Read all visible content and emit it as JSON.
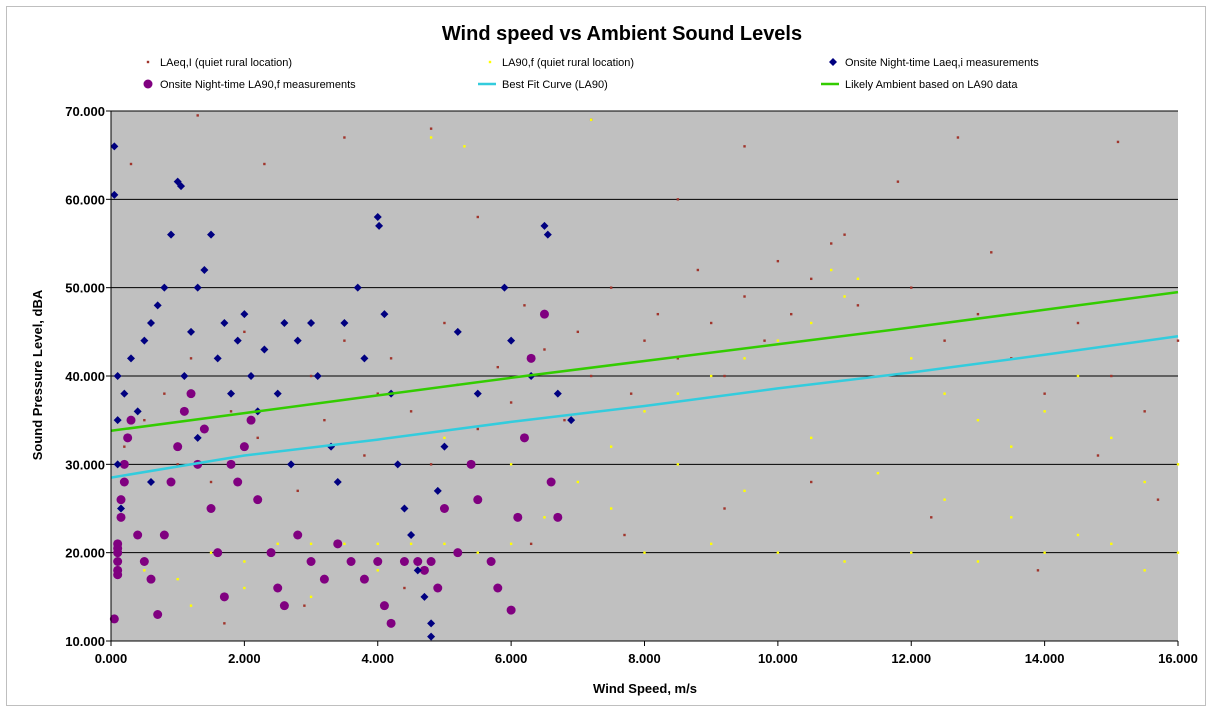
{
  "chart_data": {
    "type": "scatter",
    "title": "Wind speed vs Ambient Sound Levels",
    "xlabel": "Wind Speed, m/s",
    "ylabel": "Sound Pressure Level, dBA",
    "xlim": [
      0,
      16
    ],
    "ylim": [
      10,
      70
    ],
    "x_ticks": [
      "0.000",
      "2.000",
      "4.000",
      "6.000",
      "8.000",
      "10.000",
      "12.000",
      "14.000",
      "16.000"
    ],
    "y_ticks": [
      "10.000",
      "20.000",
      "30.000",
      "40.000",
      "50.000",
      "60.000",
      "70.000"
    ],
    "grid": "horizontal",
    "plot_background": "#c0c0c0",
    "legend_position": "top",
    "series": [
      {
        "name": "LAeq,I (quiet rural location)",
        "marker": "small-square",
        "color": "#a0352c",
        "note": "dense cloud of several thousand points",
        "points": [
          [
            0.2,
            32
          ],
          [
            0.5,
            35
          ],
          [
            0.8,
            38
          ],
          [
            1.0,
            30
          ],
          [
            1.2,
            42
          ],
          [
            1.5,
            28
          ],
          [
            1.8,
            36
          ],
          [
            2.0,
            45
          ],
          [
            2.2,
            33
          ],
          [
            2.5,
            38
          ],
          [
            2.8,
            27
          ],
          [
            3.0,
            40
          ],
          [
            3.2,
            35
          ],
          [
            3.5,
            44
          ],
          [
            3.8,
            31
          ],
          [
            4.0,
            38
          ],
          [
            4.2,
            42
          ],
          [
            4.5,
            36
          ],
          [
            4.8,
            30
          ],
          [
            5.0,
            46
          ],
          [
            5.2,
            39
          ],
          [
            5.5,
            34
          ],
          [
            5.8,
            41
          ],
          [
            6.0,
            37
          ],
          [
            6.2,
            48
          ],
          [
            6.5,
            43
          ],
          [
            6.8,
            35
          ],
          [
            7.0,
            45
          ],
          [
            7.2,
            40
          ],
          [
            7.5,
            50
          ],
          [
            7.8,
            38
          ],
          [
            8.0,
            44
          ],
          [
            8.2,
            47
          ],
          [
            8.5,
            42
          ],
          [
            8.8,
            52
          ],
          [
            9.0,
            46
          ],
          [
            9.2,
            40
          ],
          [
            9.5,
            49
          ],
          [
            9.8,
            44
          ],
          [
            10.0,
            53
          ],
          [
            10.2,
            47
          ],
          [
            10.5,
            51
          ],
          [
            10.8,
            55
          ],
          [
            11.0,
            56
          ],
          [
            11.2,
            48
          ],
          [
            11.5,
            45
          ],
          [
            12.0,
            50
          ],
          [
            12.5,
            44
          ],
          [
            13.0,
            47
          ],
          [
            13.5,
            42
          ],
          [
            14.0,
            38
          ],
          [
            14.5,
            46
          ],
          [
            15.0,
            40
          ],
          [
            15.5,
            36
          ],
          [
            16.0,
            44
          ],
          [
            0.3,
            64
          ],
          [
            1.3,
            69.5
          ],
          [
            2.3,
            64
          ],
          [
            3.5,
            67
          ],
          [
            4.8,
            68
          ],
          [
            7.2,
            69
          ],
          [
            9.5,
            66
          ],
          [
            12.7,
            67
          ],
          [
            15.1,
            66.5
          ],
          [
            5.5,
            58
          ],
          [
            8.5,
            60
          ],
          [
            11.8,
            62
          ],
          [
            13.2,
            54
          ],
          [
            14.8,
            31
          ],
          [
            15.7,
            26
          ],
          [
            13.9,
            18
          ],
          [
            12.3,
            24
          ],
          [
            10.5,
            28
          ],
          [
            9.2,
            25
          ],
          [
            7.7,
            22
          ],
          [
            6.3,
            21
          ],
          [
            4.4,
            16
          ],
          [
            2.9,
            14
          ],
          [
            1.7,
            12
          ]
        ]
      },
      {
        "name": "LA90,f (quiet rural location)",
        "marker": "small-square",
        "color": "#ffff00",
        "note": "dense band near 20 dBA at low wind, rising with wind speed",
        "points": [
          [
            0.5,
            18
          ],
          [
            1.0,
            17
          ],
          [
            1.5,
            20
          ],
          [
            2.0,
            19
          ],
          [
            2.5,
            21
          ],
          [
            3.0,
            21
          ],
          [
            3.5,
            21
          ],
          [
            4.0,
            21
          ],
          [
            4.5,
            21
          ],
          [
            5.0,
            21
          ],
          [
            5.5,
            20
          ],
          [
            6.0,
            21
          ],
          [
            6.5,
            24
          ],
          [
            7.0,
            28
          ],
          [
            7.5,
            32
          ],
          [
            8.0,
            36
          ],
          [
            8.5,
            38
          ],
          [
            9.0,
            40
          ],
          [
            9.5,
            42
          ],
          [
            10.0,
            44
          ],
          [
            10.5,
            46
          ],
          [
            11.0,
            49
          ],
          [
            11.5,
            45
          ],
          [
            12.0,
            42
          ],
          [
            12.5,
            38
          ],
          [
            13.0,
            35
          ],
          [
            13.5,
            32
          ],
          [
            14.0,
            36
          ],
          [
            14.5,
            40
          ],
          [
            15.0,
            33
          ],
          [
            15.5,
            28
          ],
          [
            16.0,
            30
          ],
          [
            8.0,
            20
          ],
          [
            9.0,
            21
          ],
          [
            10.0,
            20
          ],
          [
            11.0,
            19
          ],
          [
            12.0,
            20
          ],
          [
            13.0,
            19
          ],
          [
            14.0,
            20
          ],
          [
            15.0,
            21
          ],
          [
            16.0,
            20
          ],
          [
            7.5,
            25
          ],
          [
            8.5,
            30
          ],
          [
            9.5,
            27
          ],
          [
            10.5,
            33
          ],
          [
            11.5,
            29
          ],
          [
            12.5,
            26
          ],
          [
            13.5,
            24
          ],
          [
            14.5,
            22
          ],
          [
            15.5,
            18
          ],
          [
            6.0,
            30
          ],
          [
            5.0,
            33
          ],
          [
            4.0,
            18
          ],
          [
            3.0,
            15
          ],
          [
            2.0,
            16
          ],
          [
            1.2,
            14
          ],
          [
            4.8,
            67
          ],
          [
            7.2,
            69
          ],
          [
            5.3,
            66
          ],
          [
            10.8,
            52
          ],
          [
            11.2,
            51
          ]
        ]
      },
      {
        "name": "Onsite Night-time Laeq,i measurements",
        "marker": "diamond",
        "color": "#000080",
        "points": [
          [
            0.05,
            66
          ],
          [
            0.05,
            60.5
          ],
          [
            0.1,
            40
          ],
          [
            0.1,
            35
          ],
          [
            0.1,
            30
          ],
          [
            0.15,
            25
          ],
          [
            0.2,
            38
          ],
          [
            0.3,
            42
          ],
          [
            0.4,
            36
          ],
          [
            0.5,
            44
          ],
          [
            0.6,
            46
          ],
          [
            0.7,
            48
          ],
          [
            0.8,
            50
          ],
          [
            0.9,
            56
          ],
          [
            1.0,
            62
          ],
          [
            1.05,
            61.5
          ],
          [
            1.1,
            40
          ],
          [
            1.2,
            45
          ],
          [
            1.3,
            50
          ],
          [
            1.4,
            52
          ],
          [
            1.5,
            56
          ],
          [
            1.6,
            42
          ],
          [
            1.7,
            46
          ],
          [
            1.8,
            38
          ],
          [
            1.9,
            44
          ],
          [
            2.0,
            47
          ],
          [
            2.1,
            40
          ],
          [
            2.2,
            36
          ],
          [
            2.3,
            43
          ],
          [
            2.5,
            38
          ],
          [
            2.6,
            46
          ],
          [
            2.8,
            44
          ],
          [
            3.0,
            46
          ],
          [
            3.1,
            40
          ],
          [
            3.3,
            32
          ],
          [
            3.5,
            46
          ],
          [
            3.7,
            50
          ],
          [
            3.8,
            42
          ],
          [
            4.0,
            58
          ],
          [
            4.02,
            57
          ],
          [
            4.1,
            47
          ],
          [
            4.2,
            38
          ],
          [
            4.3,
            30
          ],
          [
            4.4,
            25
          ],
          [
            4.5,
            22
          ],
          [
            4.6,
            18
          ],
          [
            4.7,
            15
          ],
          [
            4.8,
            12
          ],
          [
            4.8,
            10.5
          ],
          [
            5.0,
            32
          ],
          [
            5.2,
            45
          ],
          [
            5.5,
            38
          ],
          [
            5.9,
            50
          ],
          [
            6.0,
            44
          ],
          [
            6.3,
            40
          ],
          [
            6.5,
            57
          ],
          [
            6.55,
            56
          ],
          [
            6.7,
            38
          ],
          [
            6.9,
            35
          ],
          [
            2.7,
            30
          ],
          [
            1.3,
            33
          ],
          [
            0.6,
            28
          ],
          [
            3.4,
            28
          ],
          [
            4.9,
            27
          ]
        ]
      },
      {
        "name": "Onsite Night-time LA90,f measurements",
        "marker": "circle",
        "color": "#800080",
        "points": [
          [
            0.05,
            12.5
          ],
          [
            0.1,
            17.5
          ],
          [
            0.1,
            18
          ],
          [
            0.1,
            19
          ],
          [
            0.1,
            20
          ],
          [
            0.1,
            20.5
          ],
          [
            0.1,
            21
          ],
          [
            0.15,
            24
          ],
          [
            0.15,
            26
          ],
          [
            0.2,
            28
          ],
          [
            0.2,
            30
          ],
          [
            0.25,
            33
          ],
          [
            0.3,
            35
          ],
          [
            0.4,
            22
          ],
          [
            0.5,
            19
          ],
          [
            0.6,
            17
          ],
          [
            0.7,
            13
          ],
          [
            0.8,
            22
          ],
          [
            0.9,
            28
          ],
          [
            1.0,
            32
          ],
          [
            1.1,
            36
          ],
          [
            1.2,
            38
          ],
          [
            1.3,
            30
          ],
          [
            1.4,
            34
          ],
          [
            1.5,
            25
          ],
          [
            1.6,
            20
          ],
          [
            1.7,
            15
          ],
          [
            1.8,
            30
          ],
          [
            1.9,
            28
          ],
          [
            2.0,
            32
          ],
          [
            2.1,
            35
          ],
          [
            2.2,
            26
          ],
          [
            2.4,
            20
          ],
          [
            2.5,
            16
          ],
          [
            2.6,
            14
          ],
          [
            2.8,
            22
          ],
          [
            3.0,
            19
          ],
          [
            3.2,
            17
          ],
          [
            3.4,
            21
          ],
          [
            3.6,
            19
          ],
          [
            3.8,
            17
          ],
          [
            4.0,
            19
          ],
          [
            4.1,
            14
          ],
          [
            4.2,
            12
          ],
          [
            4.4,
            19
          ],
          [
            4.6,
            19
          ],
          [
            4.7,
            18
          ],
          [
            4.8,
            19
          ],
          [
            4.9,
            16
          ],
          [
            5.0,
            25
          ],
          [
            5.2,
            20
          ],
          [
            5.4,
            30
          ],
          [
            5.5,
            26
          ],
          [
            5.7,
            19
          ],
          [
            5.8,
            16
          ],
          [
            6.0,
            13.5
          ],
          [
            6.1,
            24
          ],
          [
            6.2,
            33
          ],
          [
            6.3,
            42
          ],
          [
            6.5,
            47
          ],
          [
            6.6,
            28
          ],
          [
            6.7,
            24
          ]
        ]
      },
      {
        "name": "Best Fit Curve (LA90)",
        "marker": "line",
        "color": "#33ccdd",
        "points": [
          [
            0,
            28.5
          ],
          [
            2,
            31
          ],
          [
            4,
            32.8
          ],
          [
            6,
            34.8
          ],
          [
            8,
            36.6
          ],
          [
            10,
            38.6
          ],
          [
            12,
            40.4
          ],
          [
            14,
            42.4
          ],
          [
            16,
            44.5
          ]
        ]
      },
      {
        "name": "Likely Ambient based on LA90 data",
        "marker": "line",
        "color": "#33cc00",
        "points": [
          [
            0,
            33.8
          ],
          [
            2,
            35.8
          ],
          [
            4,
            37.8
          ],
          [
            6,
            39.8
          ],
          [
            8,
            41.7
          ],
          [
            10,
            43.6
          ],
          [
            12,
            45.5
          ],
          [
            14,
            47.5
          ],
          [
            16,
            49.5
          ]
        ]
      }
    ]
  }
}
